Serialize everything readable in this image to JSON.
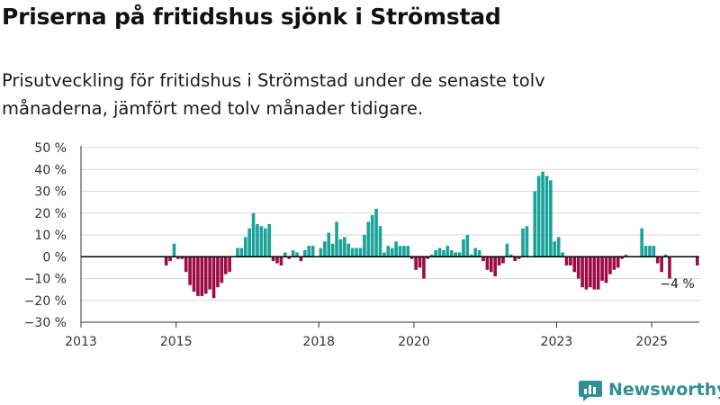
{
  "title": "Priserna på fritidshus sjönk i Strömstad",
  "subtitle": "Prisutveckling för fritidshus i Strömstad under de senaste tolv månaderna, jämfört med tolv månader tidigare.",
  "brand": {
    "name": "Newsworthy",
    "icon": "newsworthy-logo-icon",
    "color": "#2f8f94"
  },
  "colors": {
    "positive": "#1aa39a",
    "negative": "#9b0c46",
    "axis": "#000000",
    "grid": "#d8d8d8"
  },
  "chart_data": {
    "type": "bar",
    "title": "Priserna på fritidshus sjönk i Strömstad",
    "xlabel": "",
    "ylabel": "",
    "ylim": [
      -30,
      50
    ],
    "xlim": [
      2013.0,
      2026.0
    ],
    "grid": true,
    "y_ticks": [
      {
        "value": 50,
        "label": "50 %"
      },
      {
        "value": 40,
        "label": "40 %"
      },
      {
        "value": 30,
        "label": "30 %"
      },
      {
        "value": 20,
        "label": "20 %"
      },
      {
        "value": 10,
        "label": "10 %"
      },
      {
        "value": 0,
        "label": "0 %"
      },
      {
        "value": -10,
        "label": "−10 %"
      },
      {
        "value": -20,
        "label": "−20 %"
      },
      {
        "value": -30,
        "label": "−30 %"
      }
    ],
    "x_ticks": [
      {
        "value": 2013,
        "label": "2013"
      },
      {
        "value": 2015,
        "label": "2015"
      },
      {
        "value": 2018,
        "label": "2018"
      },
      {
        "value": 2020,
        "label": "2020"
      },
      {
        "value": 2023,
        "label": "2023"
      },
      {
        "value": 2025,
        "label": "2025"
      }
    ],
    "x_start": "2013-01",
    "interval": "month",
    "values": [
      null,
      null,
      null,
      null,
      null,
      null,
      null,
      null,
      null,
      null,
      null,
      null,
      null,
      null,
      null,
      null,
      null,
      null,
      null,
      null,
      null,
      -4,
      -2,
      6,
      -1,
      -1,
      -7,
      -13,
      -16,
      -18,
      -18,
      -17,
      -15,
      -19,
      -14,
      -12,
      -8,
      -7,
      0,
      4,
      4,
      9,
      13,
      20,
      15,
      14,
      13,
      15,
      -2,
      -3,
      -4,
      2,
      -1,
      3,
      2,
      -2,
      3,
      5,
      5,
      0,
      4,
      7,
      11,
      6,
      16,
      8,
      9,
      6,
      4,
      4,
      4,
      10,
      16,
      19,
      22,
      14,
      2,
      5,
      4,
      7,
      5,
      5,
      5,
      -1,
      -6,
      -5,
      -10,
      -1,
      1,
      3,
      4,
      3,
      5,
      3,
      2,
      2,
      8,
      10,
      1,
      4,
      3,
      -2,
      -6,
      -7,
      -9,
      -4,
      -3,
      6,
      1,
      -2,
      -1,
      13,
      14,
      0,
      30,
      37,
      39,
      37,
      35,
      7,
      9,
      2,
      -4,
      -4,
      -7,
      -10,
      -14,
      -15,
      -14,
      -15,
      -15,
      -11,
      -12,
      -8,
      -6,
      -5,
      -1,
      1,
      0,
      0,
      0,
      13,
      5,
      5,
      5,
      -3,
      -7,
      1,
      -10,
      0,
      0,
      0,
      0,
      0,
      0,
      -4
    ],
    "annotations": [
      {
        "x": "2025-12",
        "y": -4,
        "text": "−4 %"
      }
    ]
  }
}
